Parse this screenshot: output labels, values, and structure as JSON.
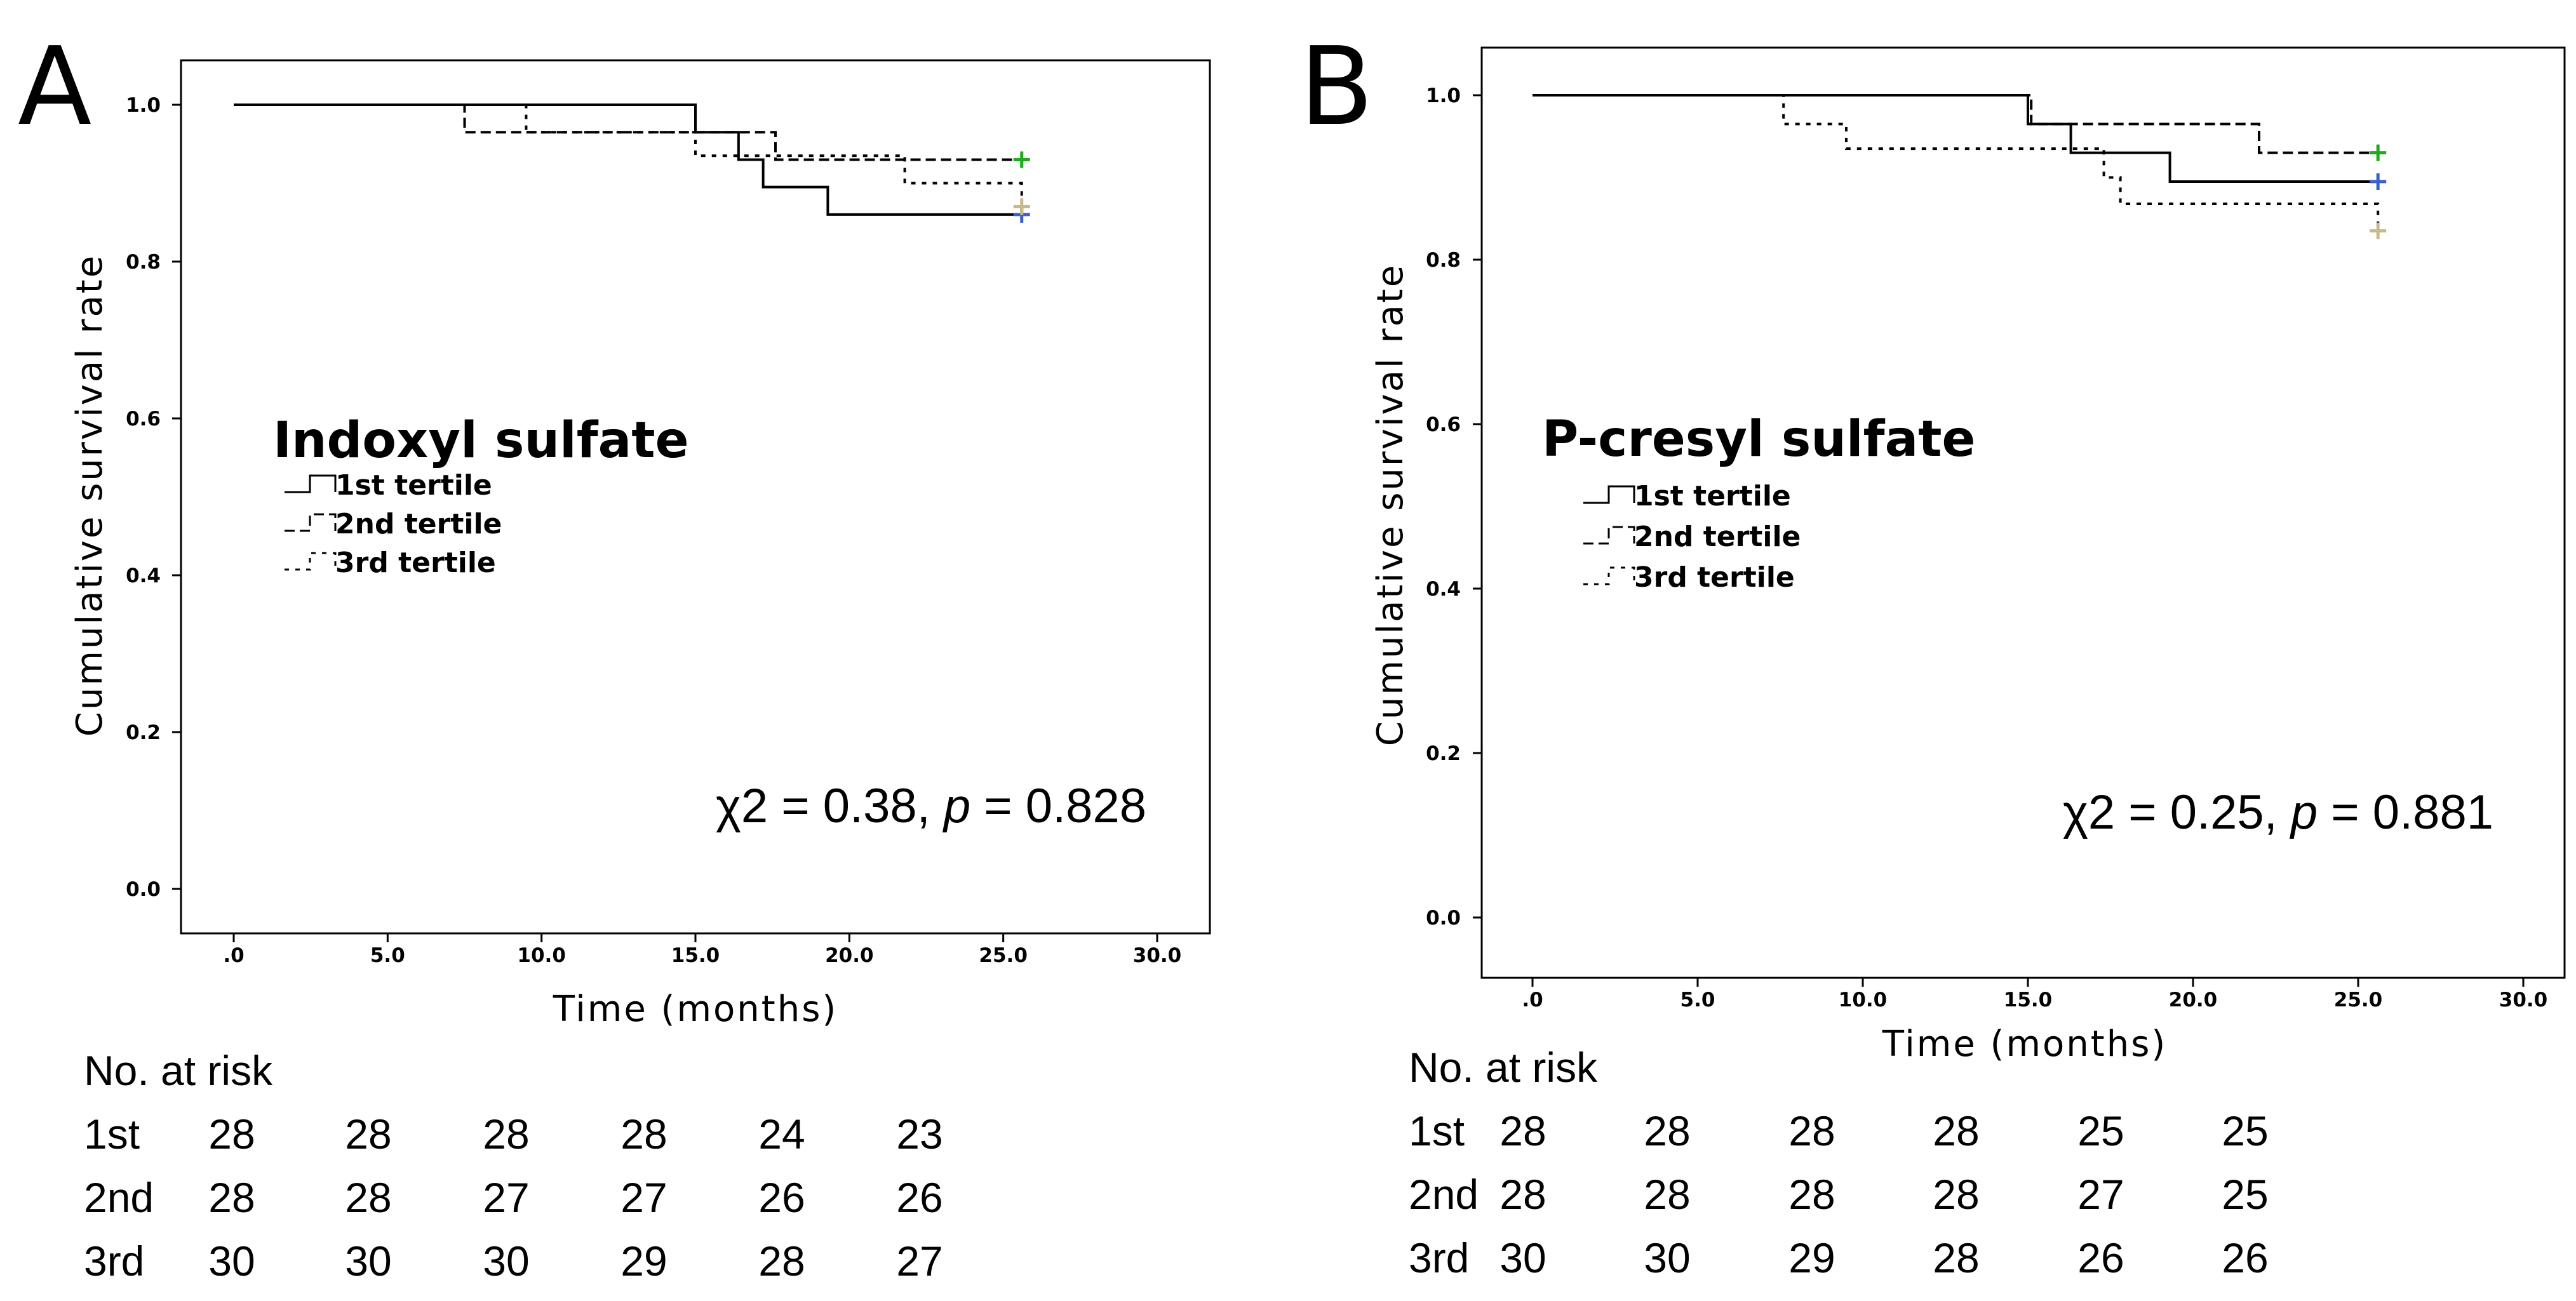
{
  "colors": {
    "censor_1st": "#3a5fcd",
    "censor_2nd": "#1faa1f",
    "censor_3rd": "#c8b98a",
    "line": "#000000"
  },
  "chart_data": [
    {
      "type": "line",
      "panel_label": "A",
      "title": "Indoxyl sulfate",
      "xlabel": "Time (months)",
      "ylabel": "Cumulative  survival rate",
      "xlim": [
        -1.5,
        30.5
      ],
      "ylim": [
        -0.05,
        1.05
      ],
      "x_ticks": [
        0,
        5,
        10,
        15,
        20,
        25,
        30
      ],
      "x_tick_labels": [
        ".0",
        "5.0",
        "10.0",
        "15.0",
        "20.0",
        "25.0",
        "30.0"
      ],
      "y_ticks": [
        0,
        0.2,
        0.4,
        0.6,
        0.8,
        1.0
      ],
      "y_tick_labels": [
        "0.0",
        "0.2",
        "0.4",
        "0.6",
        "0.8",
        "1.0"
      ],
      "stat": {
        "prefix": "χ2 = 0.38, ",
        "p_symbol": "p",
        "suffix": " = 0.828"
      },
      "series": [
        {
          "name": "1st tertile",
          "style": "solid",
          "censor_color": "#3a5fcd",
          "x": [
            0,
            15.0,
            16.4,
            17.2,
            19.3,
            25.6
          ],
          "y": [
            1.0,
            0.965,
            0.93,
            0.895,
            0.86,
            0.86
          ]
        },
        {
          "name": "2nd tertile",
          "style": "dashed",
          "censor_color": "#1faa1f",
          "x": [
            0,
            7.5,
            15.2,
            17.6,
            25.6
          ],
          "y": [
            1.0,
            0.965,
            0.965,
            0.93,
            0.93
          ]
        },
        {
          "name": "3rd tertile",
          "style": "dotted",
          "censor_color": "#c8b98a",
          "x": [
            0,
            9.5,
            15.0,
            21.8,
            25.6
          ],
          "y": [
            1.0,
            0.965,
            0.935,
            0.9,
            0.87
          ]
        }
      ],
      "no_at_risk": {
        "title": "No. at risk",
        "rows": [
          {
            "label": "1st",
            "values": [
              28,
              28,
              28,
              28,
              24,
              23
            ]
          },
          {
            "label": "2nd",
            "values": [
              28,
              28,
              27,
              27,
              26,
              26
            ]
          },
          {
            "label": "3rd",
            "values": [
              30,
              30,
              30,
              29,
              28,
              27
            ]
          }
        ]
      }
    },
    {
      "type": "line",
      "panel_label": "B",
      "title": "P-cresyl sulfate",
      "xlabel": "Time (months)",
      "ylabel": "Cumulative survival rate",
      "xlim": [
        -1.5,
        30.5
      ],
      "ylim": [
        -0.05,
        1.05
      ],
      "x_ticks": [
        0,
        5,
        10,
        15,
        20,
        25,
        30
      ],
      "x_tick_labels": [
        ".0",
        "5.0",
        "10.0",
        "15.0",
        "20.0",
        "25.0",
        "30.0"
      ],
      "y_ticks": [
        0,
        0.2,
        0.4,
        0.6,
        0.8,
        1.0
      ],
      "y_tick_labels": [
        "0.0",
        "0.2",
        "0.4",
        "0.6",
        "0.8",
        "1.0"
      ],
      "stat": {
        "prefix": "χ2 = 0.25, ",
        "p_symbol": "p",
        "suffix": " = 0.881"
      },
      "series": [
        {
          "name": "1st tertile",
          "style": "solid",
          "censor_color": "#3a5fcd",
          "x": [
            0,
            15.0,
            16.3,
            19.3,
            25.6
          ],
          "y": [
            1.0,
            0.965,
            0.93,
            0.895,
            0.895
          ]
        },
        {
          "name": "2nd tertile",
          "style": "dashed",
          "censor_color": "#1faa1f",
          "x": [
            0,
            15.1,
            22.0,
            25.6
          ],
          "y": [
            1.0,
            0.965,
            0.93,
            0.93
          ]
        },
        {
          "name": "3rd tertile",
          "style": "dotted",
          "censor_color": "#c8b98a",
          "x": [
            0,
            7.6,
            9.5,
            16.3,
            17.3,
            17.8,
            25.6
          ],
          "y": [
            1.0,
            0.965,
            0.935,
            0.935,
            0.9,
            0.868,
            0.835
          ]
        }
      ],
      "no_at_risk": {
        "title": "No. at risk",
        "rows": [
          {
            "label": "1st",
            "values": [
              28,
              28,
              28,
              28,
              25,
              25
            ]
          },
          {
            "label": "2nd",
            "values": [
              28,
              28,
              28,
              28,
              27,
              25
            ]
          },
          {
            "label": "3rd",
            "values": [
              30,
              30,
              29,
              28,
              26,
              26
            ]
          }
        ]
      }
    }
  ]
}
